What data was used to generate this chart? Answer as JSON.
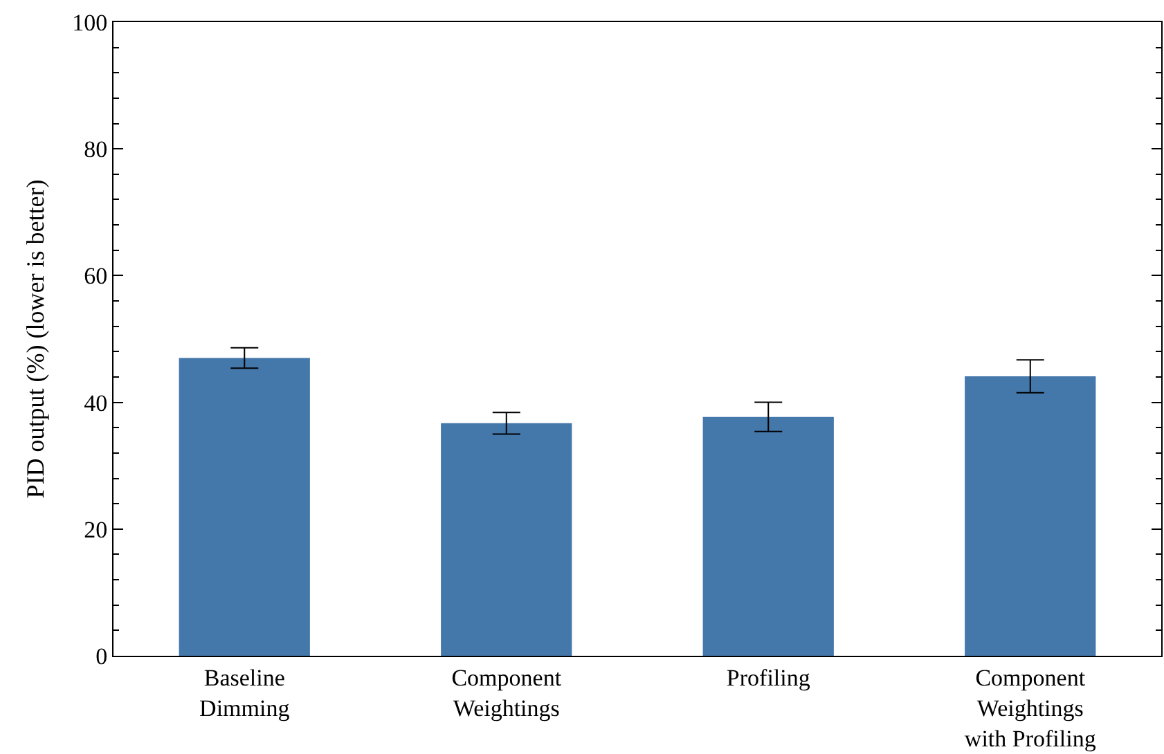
{
  "chart_data": {
    "type": "bar",
    "ylabel": "PID output (%) (lower is better)",
    "categories": [
      "Baseline\nDimming",
      "Component\nWeightings",
      "Profiling",
      "Component\nWeightings\nwith Profiling"
    ],
    "values": [
      47.0,
      36.7,
      37.7,
      44.1
    ],
    "errors": [
      1.6,
      1.7,
      2.3,
      2.6
    ],
    "color": "#4477aa",
    "ylim": [
      0,
      100
    ],
    "yticks": [
      0,
      20,
      40,
      60,
      80,
      100,
      {
        "value": 4,
        "label": null
      },
      {
        "value": 8,
        "label": null
      },
      {
        "value": 12,
        "label": null
      },
      {
        "value": 16,
        "label": null
      },
      {
        "value": 24,
        "label": null
      },
      {
        "value": 28,
        "label": null
      },
      {
        "value": 32,
        "label": null
      },
      {
        "value": 36,
        "label": null
      },
      {
        "value": 44,
        "label": null
      },
      {
        "value": 48,
        "label": null
      },
      {
        "value": 52,
        "label": null
      },
      {
        "value": 56,
        "label": null
      },
      {
        "value": 64,
        "label": null
      },
      {
        "value": 68,
        "label": null
      },
      {
        "value": 72,
        "label": null
      },
      {
        "value": 76,
        "label": null
      },
      {
        "value": 84,
        "label": null
      },
      {
        "value": 88,
        "label": null
      },
      {
        "value": 92,
        "label": null
      },
      {
        "value": 96,
        "label": null
      }
    ]
  }
}
